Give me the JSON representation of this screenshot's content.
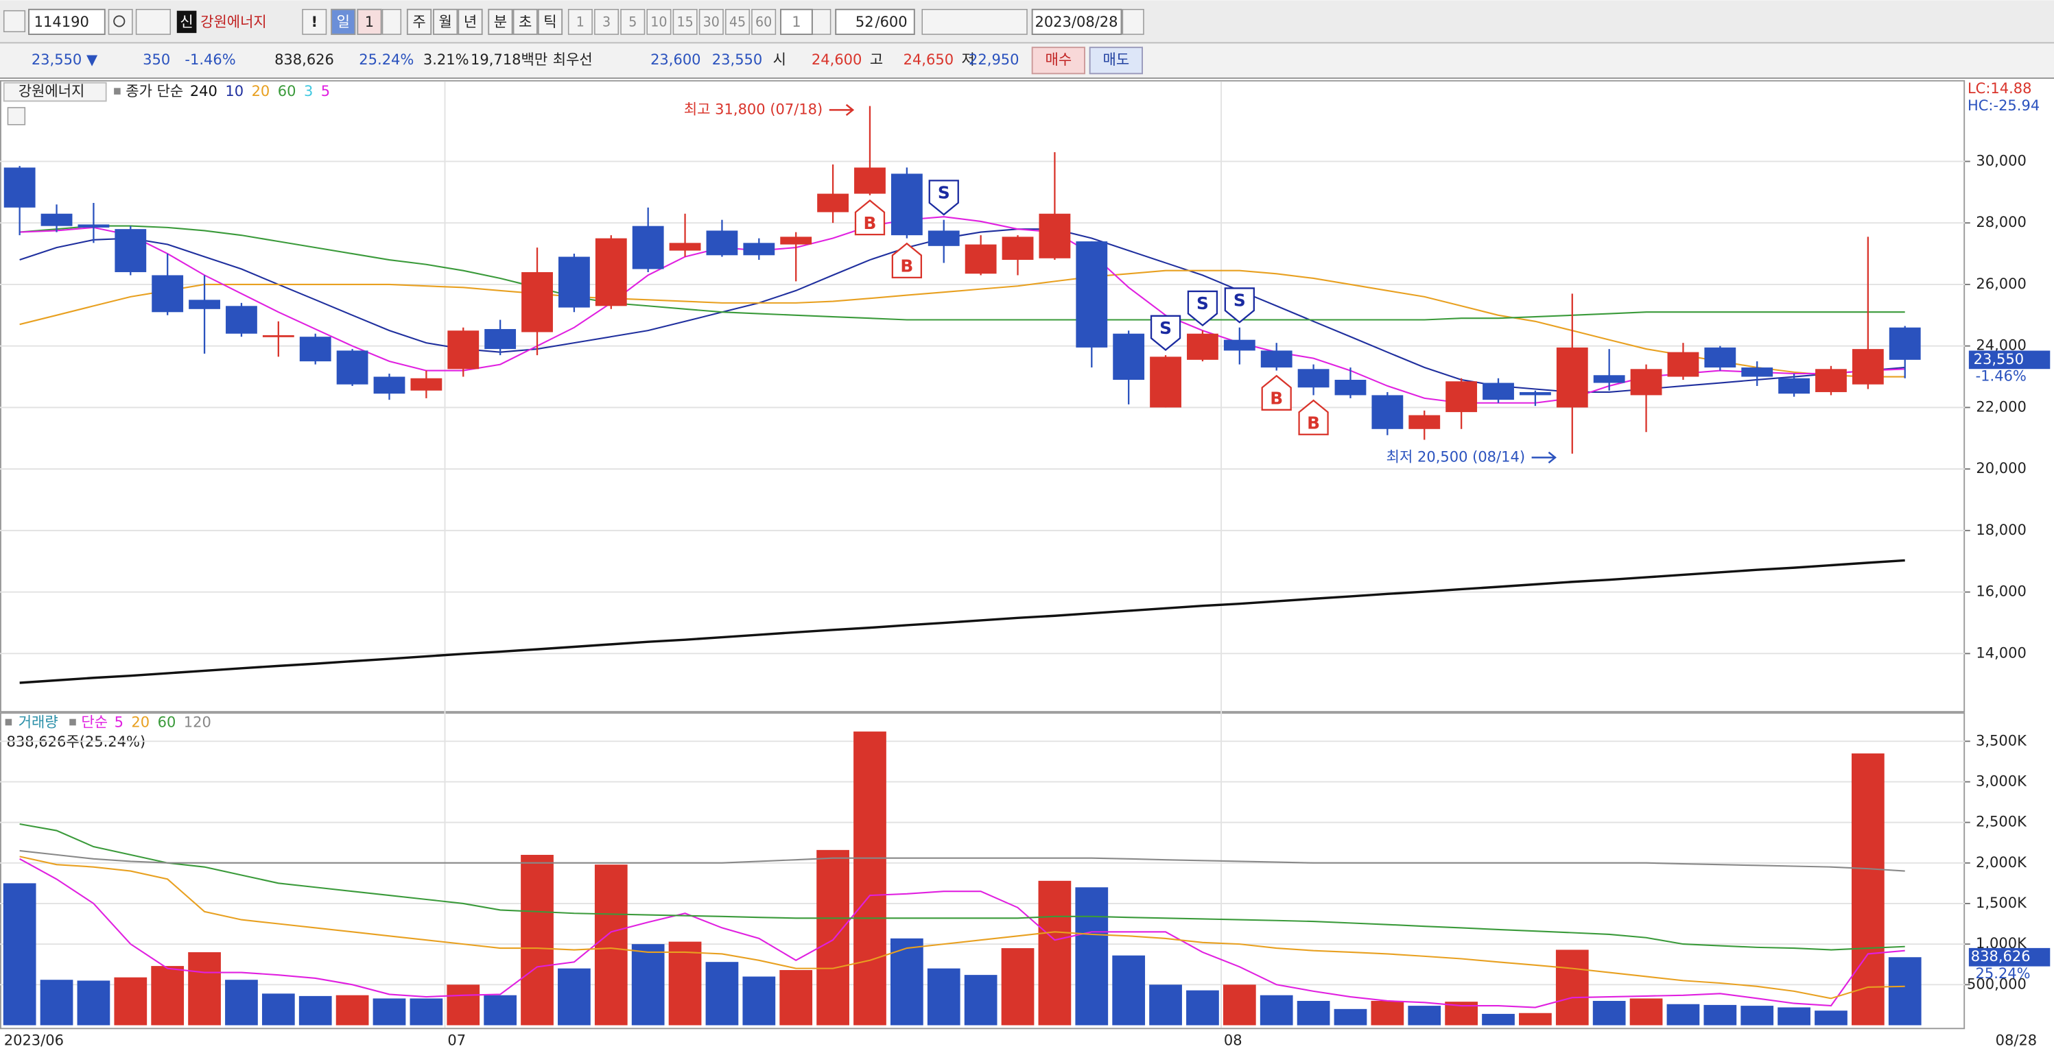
{
  "toolbar": {
    "code": "114190",
    "credit": "신",
    "name": "강원에너지",
    "alert": "!",
    "periods": [
      "일",
      "1",
      "주",
      "월",
      "년",
      "분",
      "초",
      "틱"
    ],
    "intervals": [
      "1",
      "3",
      "5",
      "10",
      "15",
      "30",
      "45",
      "60"
    ],
    "unit": "1",
    "count": "52",
    "count_max": "/600",
    "date": "2023/08/28"
  },
  "quote_bar": {
    "price": "23,550 ▼",
    "change": "350",
    "change_pct": "-1.46%",
    "volume": "838,626",
    "turnover": "25.24%",
    "ratio": "3.21%",
    "amount": "19,718백만",
    "best_label": "최우선",
    "best_ask": "23,600",
    "best_bid": "23,550",
    "open_label": "시",
    "open": "24,600",
    "high_label": "고",
    "high": "24,650",
    "low_label": "저",
    "low": "22,950",
    "buy": "매수",
    "sell": "매도"
  },
  "chart_data": [
    {
      "type": "candlestick",
      "title": "강원에너지",
      "ma_label": "종가 단순",
      "categories": [
        "2023/06",
        null,
        null,
        null,
        null,
        null,
        null,
        null,
        null,
        null,
        null,
        null,
        "07",
        null,
        null,
        null,
        null,
        null,
        null,
        null,
        null,
        null,
        null,
        null,
        null,
        null,
        null,
        null,
        null,
        null,
        null,
        null,
        null,
        "08",
        null,
        null,
        null,
        null,
        null,
        null,
        null,
        null,
        null,
        null,
        null,
        null,
        null,
        null,
        null,
        null,
        null,
        null
      ],
      "end_label": "08/28",
      "open": [
        29800,
        28300,
        27950,
        27800,
        26300,
        25500,
        25300,
        24300,
        24300,
        23850,
        23000,
        22550,
        23250,
        24550,
        24450,
        26900,
        25300,
        27900,
        27100,
        27750,
        27350,
        27300,
        28350,
        28950,
        29600,
        27750,
        26350,
        26800,
        26850,
        27400,
        24400,
        22000,
        23550,
        24200,
        23850,
        23250,
        22900,
        22400,
        21300,
        21850,
        22800,
        22500,
        22000,
        23050,
        22400,
        23000,
        23950,
        23300,
        22950,
        22500,
        22750,
        24600
      ],
      "high": [
        29850,
        28600,
        28650,
        27900,
        27000,
        26300,
        25400,
        24800,
        24400,
        23900,
        23100,
        23200,
        24600,
        24850,
        27200,
        27000,
        27600,
        28500,
        28300,
        28100,
        27500,
        27700,
        29900,
        31800,
        29800,
        28100,
        27600,
        27600,
        30300,
        27400,
        24500,
        23700,
        24500,
        24600,
        24100,
        23400,
        23300,
        22500,
        21900,
        22950,
        22950,
        22550,
        25700,
        23900,
        23400,
        24100,
        24000,
        23500,
        23100,
        23350,
        27550,
        24650
      ],
      "low": [
        27600,
        27700,
        27350,
        26300,
        25000,
        23750,
        24300,
        23650,
        23400,
        22700,
        22250,
        22300,
        23000,
        23700,
        23700,
        25100,
        25200,
        26400,
        26900,
        26900,
        26800,
        26100,
        28000,
        28900,
        27500,
        26700,
        26300,
        26300,
        26800,
        23300,
        22100,
        22000,
        23500,
        23400,
        23200,
        22400,
        22300,
        21100,
        20950,
        21300,
        22150,
        22050,
        20500,
        22550,
        21200,
        22900,
        23200,
        22700,
        22350,
        22400,
        22600,
        22950
      ],
      "close": [
        28500,
        27900,
        27850,
        26400,
        25100,
        25200,
        24400,
        24350,
        23500,
        22750,
        22450,
        22950,
        24500,
        23900,
        26400,
        25250,
        27500,
        26500,
        27350,
        26950,
        26950,
        27550,
        28950,
        29800,
        27600,
        27250,
        27300,
        27550,
        28300,
        23950,
        22900,
        23650,
        24400,
        23850,
        23300,
        22650,
        22400,
        21300,
        21750,
        22850,
        22250,
        22400,
        23950,
        22800,
        23250,
        23800,
        23300,
        23000,
        22450,
        23250,
        23900,
        23550
      ],
      "up_color": "#d9342b",
      "down_color": "#2a52be",
      "series": [
        {
          "name": "240",
          "color": "#111111",
          "values": [
            13050,
            13130,
            13210,
            13280,
            13360,
            13440,
            13520,
            13600,
            13670,
            13750,
            13830,
            13910,
            13990,
            14060,
            14140,
            14220,
            14300,
            14380,
            14450,
            14530,
            14610,
            14690,
            14770,
            14840,
            14920,
            15000,
            15080,
            15160,
            15230,
            15310,
            15390,
            15470,
            15550,
            15620,
            15700,
            15780,
            15860,
            15940,
            16010,
            16090,
            16170,
            16250,
            16330,
            16400,
            16480,
            16560,
            16640,
            16720,
            16790,
            16870,
            16950,
            17030
          ]
        },
        {
          "name": "10",
          "color": "#1f2f9e",
          "values": [
            26800,
            27200,
            27450,
            27500,
            27300,
            26900,
            26500,
            26000,
            25500,
            25000,
            24500,
            24100,
            23900,
            23800,
            23900,
            24100,
            24300,
            24500,
            24800,
            25100,
            25400,
            25800,
            26300,
            26800,
            27200,
            27500,
            27700,
            27800,
            27800,
            27500,
            27100,
            26700,
            26300,
            25800,
            25300,
            24800,
            24300,
            23800,
            23300,
            22900,
            22700,
            22600,
            22500,
            22500,
            22600,
            22700,
            22800,
            22900,
            23000,
            23100,
            23200,
            23300
          ]
        },
        {
          "name": "20",
          "color": "#e8a020",
          "values": [
            24700,
            25000,
            25300,
            25600,
            25800,
            26000,
            26000,
            26000,
            26000,
            26000,
            26000,
            25950,
            25900,
            25800,
            25700,
            25600,
            25550,
            25500,
            25450,
            25400,
            25400,
            25400,
            25450,
            25550,
            25650,
            25750,
            25850,
            25950,
            26100,
            26250,
            26350,
            26450,
            26450,
            26450,
            26350,
            26200,
            26000,
            25800,
            25600,
            25300,
            25000,
            24800,
            24500,
            24200,
            23900,
            23700,
            23500,
            23300,
            23150,
            23050,
            23000,
            23000
          ]
        },
        {
          "name": "60",
          "color": "#3a9a3a",
          "values": [
            27700,
            27800,
            27900,
            27900,
            27850,
            27750,
            27600,
            27400,
            27200,
            27000,
            26800,
            26650,
            26450,
            26200,
            25900,
            25600,
            25400,
            25300,
            25200,
            25100,
            25050,
            25000,
            24950,
            24900,
            24850,
            24850,
            24850,
            24850,
            24850,
            24850,
            24850,
            24850,
            24850,
            24850,
            24850,
            24850,
            24850,
            24850,
            24850,
            24900,
            24900,
            24950,
            25000,
            25050,
            25100,
            25100,
            25100,
            25100,
            25100,
            25100,
            25100,
            25100
          ]
        },
        {
          "name": "3",
          "color": "#40c8e0",
          "values": [
            null,
            null,
            null,
            null,
            null,
            null,
            null,
            null,
            null,
            null,
            null,
            null,
            null,
            null,
            null,
            null,
            null,
            null,
            null,
            null,
            null,
            null,
            null,
            null,
            null,
            null,
            null,
            null,
            null,
            null,
            null,
            null,
            null,
            null,
            null,
            null,
            null,
            null,
            null,
            null,
            null,
            null,
            null,
            null,
            null,
            null,
            null,
            null,
            null,
            null,
            null,
            null
          ]
        },
        {
          "name": "5",
          "color": "#e020e0",
          "values": [
            27700,
            27750,
            27850,
            27600,
            27000,
            26300,
            25700,
            25100,
            24550,
            24000,
            23500,
            23200,
            23200,
            23400,
            24000,
            24600,
            25400,
            26300,
            26900,
            27200,
            27100,
            27200,
            27500,
            27900,
            28100,
            28200,
            28050,
            27800,
            27700,
            27000,
            25900,
            25000,
            24500,
            24100,
            23800,
            23600,
            23200,
            22700,
            22300,
            22150,
            22150,
            22150,
            22300,
            22700,
            23000,
            23100,
            23200,
            23150,
            23100,
            23100,
            23200,
            23250
          ]
        }
      ],
      "signals": [
        {
          "label": "B",
          "index": 23
        },
        {
          "label": "B",
          "index": 24
        },
        {
          "label": "S",
          "index": 25
        },
        {
          "label": "S",
          "index": 31
        },
        {
          "label": "S",
          "index": 32
        },
        {
          "label": "S",
          "index": 33
        },
        {
          "label": "B",
          "index": 34
        },
        {
          "label": "B",
          "index": 35
        }
      ],
      "annotations": [
        {
          "label": "최고 31,800 (07/18)",
          "index": 23,
          "value": 31800,
          "color": "#d9342b"
        },
        {
          "label": "최저 20,500 (08/14)",
          "index": 42,
          "value": 20500,
          "color": "#2a52be"
        }
      ],
      "last_label": {
        "value": 23550,
        "label": "23,550"
      },
      "last_change": "-1.46%",
      "corner_labels": [
        "LC:14.88",
        "HC:-25.94"
      ],
      "ylim": [
        12130,
        32600
      ],
      "yticks": [
        {
          "value": 14000,
          "label": "14,000"
        },
        {
          "value": 16000,
          "label": "16,000"
        },
        {
          "value": 18000,
          "label": "18,000"
        },
        {
          "value": 20000,
          "label": "20,000"
        },
        {
          "value": 22000,
          "label": "22,000"
        },
        {
          "value": 24000,
          "label": "24,000"
        },
        {
          "value": 26000,
          "label": "26,000"
        },
        {
          "value": 28000,
          "label": "28,000"
        },
        {
          "value": 30000,
          "label": "30,000"
        }
      ],
      "grid": true
    },
    {
      "type": "bar",
      "title": "거래량",
      "ma_label": "단순",
      "summary": "838,626주(25.24%)",
      "values": [
        1750000,
        560000,
        550000,
        590000,
        730000,
        900000,
        560000,
        390000,
        360000,
        370000,
        330000,
        330000,
        500000,
        370000,
        2100000,
        700000,
        1980000,
        1000000,
        1030000,
        780000,
        600000,
        680000,
        2160000,
        3620000,
        1070000,
        700000,
        620000,
        950000,
        1780000,
        1700000,
        860000,
        500000,
        430000,
        500000,
        370000,
        300000,
        200000,
        300000,
        240000,
        290000,
        140000,
        150000,
        930000,
        300000,
        330000,
        260000,
        250000,
        240000,
        220000,
        180000,
        3350000,
        838626
      ],
      "up_color": "#d9342b",
      "down_color": "#2a52be",
      "series": [
        {
          "name": "5",
          "color": "#e020e0",
          "values": [
            2050000,
            1800000,
            1500000,
            1000000,
            700000,
            650000,
            650000,
            620000,
            580000,
            500000,
            380000,
            350000,
            370000,
            380000,
            720000,
            780000,
            1150000,
            1270000,
            1380000,
            1200000,
            1070000,
            800000,
            1050000,
            1600000,
            1620000,
            1650000,
            1650000,
            1450000,
            1050000,
            1150000,
            1150000,
            1150000,
            900000,
            720000,
            500000,
            420000,
            350000,
            300000,
            280000,
            240000,
            240000,
            220000,
            340000,
            350000,
            360000,
            370000,
            390000,
            330000,
            270000,
            240000,
            880000,
            920000
          ]
        },
        {
          "name": "20",
          "color": "#e8a020",
          "values": [
            2080000,
            1980000,
            1950000,
            1900000,
            1800000,
            1400000,
            1300000,
            1250000,
            1200000,
            1150000,
            1100000,
            1050000,
            1000000,
            950000,
            950000,
            930000,
            950000,
            900000,
            900000,
            880000,
            800000,
            700000,
            700000,
            800000,
            950000,
            1000000,
            1050000,
            1100000,
            1150000,
            1120000,
            1100000,
            1070000,
            1020000,
            1000000,
            950000,
            920000,
            900000,
            880000,
            850000,
            820000,
            780000,
            740000,
            700000,
            650000,
            600000,
            550000,
            520000,
            480000,
            420000,
            330000,
            470000,
            480000
          ]
        },
        {
          "name": "60",
          "color": "#3a9a3a",
          "values": [
            2480000,
            2400000,
            2200000,
            2100000,
            2000000,
            1950000,
            1850000,
            1750000,
            1700000,
            1650000,
            1600000,
            1550000,
            1500000,
            1420000,
            1400000,
            1380000,
            1370000,
            1360000,
            1350000,
            1340000,
            1330000,
            1320000,
            1320000,
            1320000,
            1320000,
            1320000,
            1320000,
            1320000,
            1340000,
            1340000,
            1330000,
            1320000,
            1310000,
            1300000,
            1290000,
            1280000,
            1260000,
            1240000,
            1220000,
            1200000,
            1180000,
            1160000,
            1140000,
            1120000,
            1080000,
            1000000,
            980000,
            960000,
            950000,
            930000,
            950000,
            970000
          ]
        },
        {
          "name": "120",
          "color": "#888888",
          "values": [
            2150000,
            2100000,
            2050000,
            2020000,
            2000000,
            2000000,
            2000000,
            2000000,
            2000000,
            2000000,
            2000000,
            2000000,
            2000000,
            2000000,
            2000000,
            2000000,
            2000000,
            2000000,
            2000000,
            2000000,
            2020000,
            2040000,
            2060000,
            2060000,
            2060000,
            2060000,
            2060000,
            2060000,
            2060000,
            2060000,
            2050000,
            2040000,
            2030000,
            2020000,
            2010000,
            2000000,
            2000000,
            2000000,
            2000000,
            2000000,
            2000000,
            2000000,
            2000000,
            2000000,
            2000000,
            1990000,
            1980000,
            1970000,
            1960000,
            1950000,
            1930000,
            1900000
          ]
        }
      ],
      "last_label": {
        "value": 838626,
        "label": "838,626"
      },
      "last_pct": "25.24%",
      "ylim": [
        0,
        3840000
      ],
      "yticks": [
        {
          "value": 500000,
          "label": "500,000"
        },
        {
          "value": 1000000,
          "label": "1,000K"
        },
        {
          "value": 1500000,
          "label": "1,500K"
        },
        {
          "value": 2000000,
          "label": "2,000K"
        },
        {
          "value": 2500000,
          "label": "2,500K"
        },
        {
          "value": 3000000,
          "label": "3,000K"
        },
        {
          "value": 3500000,
          "label": "3,500K"
        }
      ],
      "grid": true
    }
  ]
}
